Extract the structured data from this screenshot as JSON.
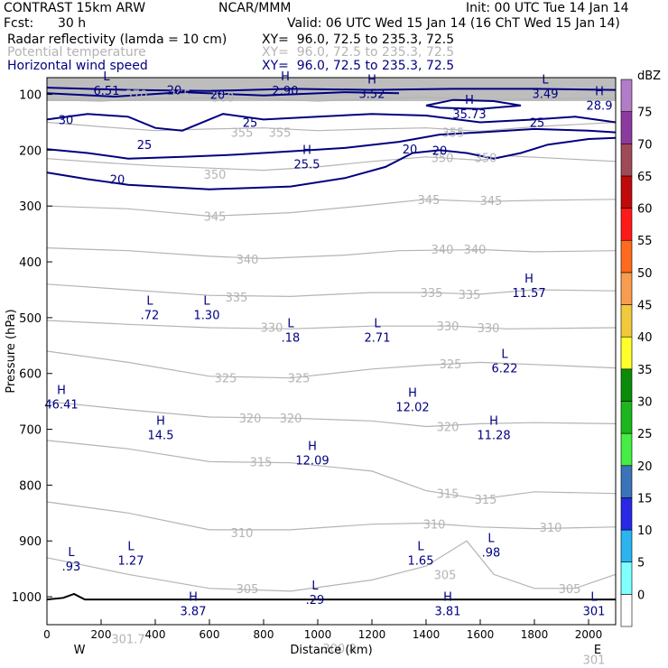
{
  "header": {
    "title": "CONTRAST 15km ARW",
    "org": "NCAR/MMM",
    "init": "Init: 00 UTC Tue 14 Jan 14",
    "fcst_label": "Fcst:",
    "fcst_value": "30 h",
    "valid": "Valid: 06 UTC Wed 15 Jan 14 (16 ChT Wed 15 Jan 14)"
  },
  "fields": [
    {
      "name": "Radar reflectivity (lamda = 10 cm)",
      "xy": "XY=  96.0, 72.5 to 235.3, 72.5",
      "color": "#000000"
    },
    {
      "name": "Potential temperature",
      "xy": "XY=  96.0, 72.5 to 235.3, 72.5",
      "color": "#b4b4b4"
    },
    {
      "name": "Horizontal wind speed",
      "xy": "XY=  96.0, 72.5 to 235.3, 72.5",
      "color": "#000080"
    }
  ],
  "chart_data": {
    "type": "line",
    "title": "Cross-section: Radar reflectivity, Potential temperature, Horizontal wind speed",
    "xlabel": "Distance (km)",
    "ylabel": "Pressure (hPa)",
    "xlim": [
      0,
      2100
    ],
    "ylim": [
      1050,
      70
    ],
    "x_ticks": [
      0,
      200,
      400,
      600,
      800,
      1000,
      1200,
      1400,
      1600,
      1800,
      2000
    ],
    "y_ticks": [
      100,
      200,
      300,
      400,
      500,
      600,
      700,
      800,
      900,
      1000
    ],
    "x_end_labels": {
      "left": "W",
      "right": "E"
    },
    "theta_labels": [
      {
        "text": "360",
        "x": 650,
        "p": 105
      },
      {
        "text": "355",
        "x": 720,
        "p": 168
      },
      {
        "text": "355",
        "x": 860,
        "p": 168
      },
      {
        "text": "355",
        "x": 1500,
        "p": 168
      },
      {
        "text": "350",
        "x": 1620,
        "p": 213
      },
      {
        "text": "350",
        "x": 620,
        "p": 243
      },
      {
        "text": "350",
        "x": 1460,
        "p": 213
      },
      {
        "text": "345",
        "x": 620,
        "p": 318
      },
      {
        "text": "345",
        "x": 1410,
        "p": 288
      },
      {
        "text": "345",
        "x": 1640,
        "p": 290
      },
      {
        "text": "340",
        "x": 740,
        "p": 395
      },
      {
        "text": "340",
        "x": 1460,
        "p": 377
      },
      {
        "text": "340",
        "x": 1580,
        "p": 377
      },
      {
        "text": "335",
        "x": 700,
        "p": 463
      },
      {
        "text": "335",
        "x": 1420,
        "p": 455
      },
      {
        "text": "335",
        "x": 1560,
        "p": 458
      },
      {
        "text": "330",
        "x": 830,
        "p": 517
      },
      {
        "text": "330",
        "x": 1480,
        "p": 515
      },
      {
        "text": "330",
        "x": 1630,
        "p": 518
      },
      {
        "text": "325",
        "x": 660,
        "p": 608
      },
      {
        "text": "325",
        "x": 930,
        "p": 608
      },
      {
        "text": "325",
        "x": 1490,
        "p": 583
      },
      {
        "text": "320",
        "x": 750,
        "p": 680
      },
      {
        "text": "320",
        "x": 900,
        "p": 680
      },
      {
        "text": "320",
        "x": 1480,
        "p": 695
      },
      {
        "text": "315",
        "x": 790,
        "p": 758
      },
      {
        "text": "315",
        "x": 1480,
        "p": 815
      },
      {
        "text": "315",
        "x": 1620,
        "p": 825
      },
      {
        "text": "310",
        "x": 720,
        "p": 885
      },
      {
        "text": "310",
        "x": 1430,
        "p": 870
      },
      {
        "text": "310",
        "x": 1860,
        "p": 875
      },
      {
        "text": "305",
        "x": 740,
        "p": 985
      },
      {
        "text": "305",
        "x": 1470,
        "p": 960
      },
      {
        "text": "305",
        "x": 1930,
        "p": 985
      },
      {
        "text": "301.7",
        "x": 300,
        "p": 1075
      },
      {
        "text": "300.8",
        "x": 1080,
        "p": 1092
      },
      {
        "text": "301",
        "x": 2020,
        "p": 1112
      },
      {
        "text": "365",
        "x": 490,
        "p": 100
      },
      {
        "text": "370",
        "x": 330,
        "p": 100
      }
    ],
    "wind_labels": [
      {
        "text": "30",
        "x": 70,
        "p": 145
      },
      {
        "text": "20",
        "x": 470,
        "p": 92
      },
      {
        "text": "20",
        "x": 630,
        "p": 100
      },
      {
        "text": "25",
        "x": 750,
        "p": 150
      },
      {
        "text": "25",
        "x": 360,
        "p": 190
      },
      {
        "text": "20",
        "x": 260,
        "p": 252
      },
      {
        "text": "20",
        "x": 1340,
        "p": 198
      },
      {
        "text": "20",
        "x": 1450,
        "p": 200
      },
      {
        "text": "25",
        "x": 1810,
        "p": 150
      }
    ],
    "extrema": [
      {
        "kind": "L",
        "value": "6.51",
        "x": 220,
        "p": 78
      },
      {
        "kind": "H",
        "value": "2.90",
        "x": 880,
        "p": 78
      },
      {
        "kind": "H",
        "value": "3.52",
        "x": 1200,
        "p": 84
      },
      {
        "kind": "H",
        "value": "35.73",
        "x": 1560,
        "p": 120
      },
      {
        "kind": "L",
        "value": "3.49",
        "x": 1840,
        "p": 84
      },
      {
        "kind": "H",
        "value": "28.9",
        "x": 2040,
        "p": 105
      },
      {
        "kind": "H",
        "value": "25.5",
        "x": 960,
        "p": 210
      },
      {
        "kind": "H",
        "value": "11.57",
        "x": 1780,
        "p": 440
      },
      {
        "kind": "L",
        "value": ".72",
        "x": 380,
        "p": 480
      },
      {
        "kind": "L",
        "value": "1.30",
        "x": 590,
        "p": 480
      },
      {
        "kind": "L",
        "value": ".18",
        "x": 900,
        "p": 520
      },
      {
        "kind": "L",
        "value": "2.71",
        "x": 1220,
        "p": 520
      },
      {
        "kind": "L",
        "value": "6.22",
        "x": 1690,
        "p": 575
      },
      {
        "kind": "H",
        "value": "46.41",
        "x": 30,
        "p": 640
      },
      {
        "kind": "H",
        "value": "12.02",
        "x": 1350,
        "p": 645
      },
      {
        "kind": "H",
        "value": "14.5",
        "x": 420,
        "p": 695
      },
      {
        "kind": "H",
        "value": "11.28",
        "x": 1650,
        "p": 695
      },
      {
        "kind": "H",
        "value": "12.09",
        "x": 980,
        "p": 740
      },
      {
        "kind": "L",
        "value": ".93",
        "x": 90,
        "p": 930
      },
      {
        "kind": "L",
        "value": "1.27",
        "x": 310,
        "p": 920
      },
      {
        "kind": "L",
        "value": "1.65",
        "x": 1380,
        "p": 920
      },
      {
        "kind": "L",
        "value": ".98",
        "x": 1640,
        "p": 905
      },
      {
        "kind": "L",
        "value": ".29",
        "x": 990,
        "p": 990
      },
      {
        "kind": "H",
        "value": "3.87",
        "x": 540,
        "p": 1010
      },
      {
        "kind": "H",
        "value": "3.81",
        "x": 1480,
        "p": 1010
      },
      {
        "kind": "L",
        "value": "301",
        "x": 2020,
        "p": 1010
      }
    ]
  },
  "colorbar": {
    "unit": "dBZ",
    "levels": [
      "0",
      "5",
      "10",
      "15",
      "20",
      "25",
      "30",
      "35",
      "40",
      "45",
      "50",
      "55",
      "60",
      "65",
      "70",
      "75"
    ],
    "colors": [
      "#ffffff",
      "#80ffff",
      "#2ab4f0",
      "#2828e6",
      "#3a73b7",
      "#44ee44",
      "#1cb71c",
      "#0a8c0a",
      "#ffff2a",
      "#f2c83c",
      "#f89c50",
      "#ff6a1e",
      "#ff1a1a",
      "#c00a0a",
      "#a04a57",
      "#8c3aa0",
      "#b27cc8"
    ]
  }
}
